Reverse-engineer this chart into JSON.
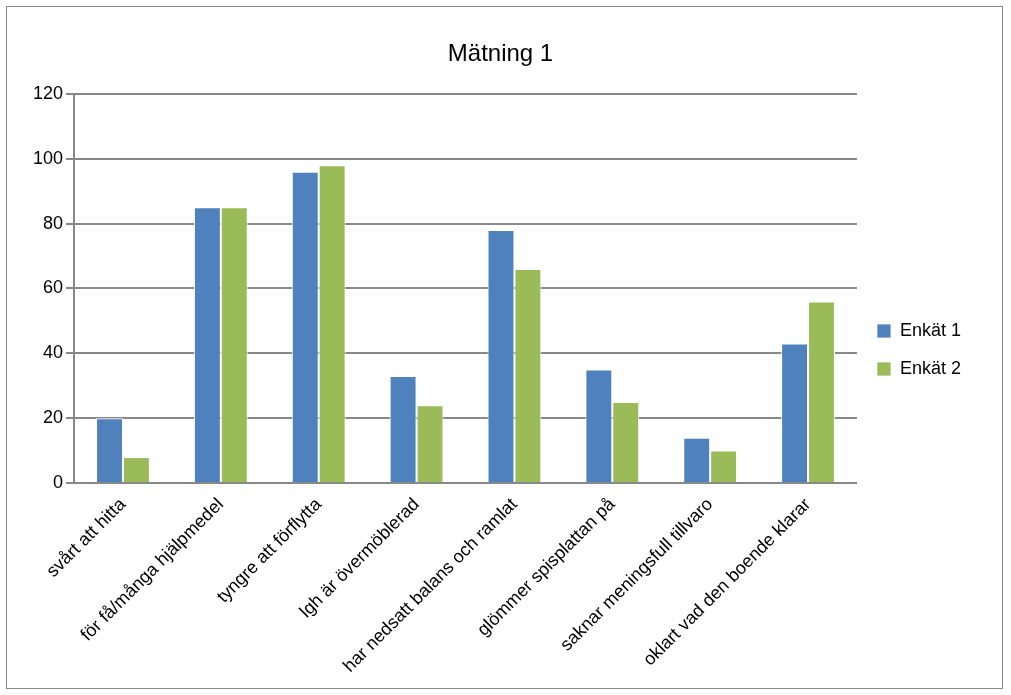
{
  "chart_data": {
    "type": "bar",
    "title": "Mätning 1",
    "categories": [
      "svårt att hitta",
      "för få/många hjälpmedel",
      "tyngre att förflytta",
      "lgh är övermöblerad",
      "har nedsatt balans och ramlat",
      "glömmer spisplattan på",
      "saknar meningsfull tillvaro",
      "oklart vad den boende klarar"
    ],
    "series": [
      {
        "name": "Enkät 1",
        "color": "#4f81bd",
        "values": [
          20,
          85,
          96,
          33,
          78,
          35,
          14,
          43
        ]
      },
      {
        "name": "Enkät 2",
        "color": "#9bbb59",
        "values": [
          8,
          85,
          98,
          24,
          66,
          25,
          10,
          56
        ]
      }
    ],
    "ylim": [
      0,
      120
    ],
    "yticks": [
      0,
      20,
      40,
      60,
      80,
      100,
      120
    ],
    "grid": "y",
    "legend": "right"
  }
}
